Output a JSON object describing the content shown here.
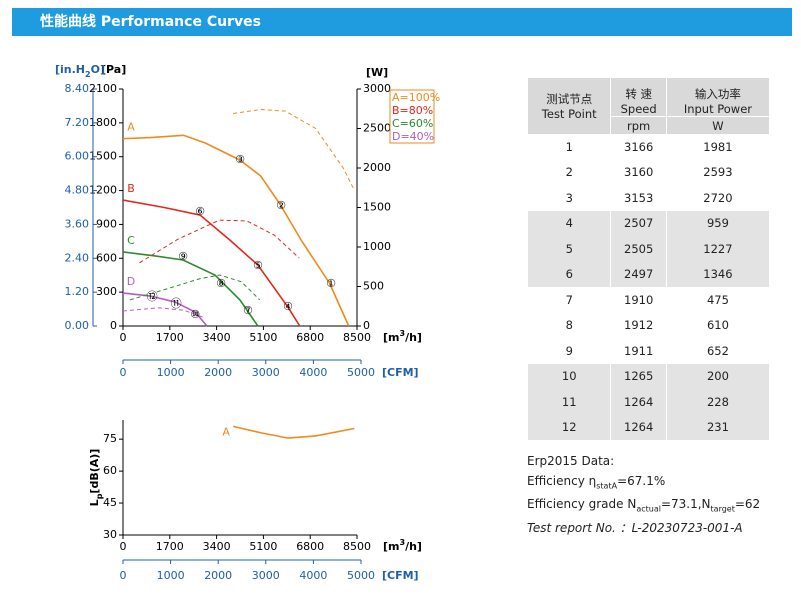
{
  "header": {
    "title": "性能曲线  Performance Curves"
  },
  "chart_data": [
    {
      "type": "line",
      "xlabel": {
        "pre": "[m",
        "sup": "3",
        "post": "/h]"
      },
      "x2label": "[CFM]",
      "ylabel": "[Pa]",
      "y3label": {
        "pre": "[in.H",
        "sub": "2",
        "post": "O]"
      },
      "y2label": "[W]",
      "xlim": [
        0,
        8500
      ],
      "xticks": [
        0,
        1700,
        3400,
        5100,
        6800,
        8500
      ],
      "x2lim": [
        0,
        5000
      ],
      "x2ticks": [
        0,
        1000,
        2000,
        3000,
        4000,
        5000
      ],
      "ylim": [
        0,
        2100
      ],
      "yticks": [
        0,
        300,
        600,
        900,
        1200,
        1500,
        1800,
        2100
      ],
      "y3lim": [
        0,
        8.4
      ],
      "y3ticks": [
        {
          "value": 0,
          "label": "0.00"
        },
        {
          "value": 1.2,
          "label": "1.20"
        },
        {
          "value": 2.4,
          "label": "2.40"
        },
        {
          "value": 3.6,
          "label": "3.60"
        },
        {
          "value": 4.8,
          "label": "4.80"
        },
        {
          "value": 6,
          "label": "6.00"
        },
        {
          "value": 7.2,
          "label": "7.20"
        },
        {
          "value": 8.4,
          "label": "8.40"
        }
      ],
      "y2lim": [
        0,
        3000
      ],
      "y2ticks": [
        0,
        500,
        1000,
        1500,
        2000,
        2500,
        3000
      ],
      "legend": "upper right",
      "series": [
        {
          "name": "A=100%",
          "label": "A",
          "color": "#f08a1c",
          "x": [
            0,
            1000,
            2200,
            3000,
            4250,
            5000,
            5700,
            6500,
            7500,
            8200
          ],
          "values": [
            1660,
            1670,
            1690,
            1620,
            1470,
            1330,
            1080,
            750,
            380,
            0
          ]
        },
        {
          "name": "B=80%",
          "label": "B",
          "color": "#e2271b",
          "x": [
            0,
            1500,
            2800,
            3880,
            4900,
            5990,
            6420
          ],
          "values": [
            1116,
            1050,
            983,
            762,
            540,
            168,
            0
          ]
        },
        {
          "name": "C=60%",
          "label": "C",
          "color": "#2e8b2e",
          "x": [
            0,
            1200,
            2180,
            3340,
            4250,
            4900
          ],
          "values": [
            656,
            620,
            585,
            452,
            230,
            0
          ]
        },
        {
          "name": "D=40%",
          "label": "D",
          "color": "#b05fc0",
          "x": [
            0,
            1000,
            1890,
            2620,
            3050
          ],
          "values": [
            292,
            265,
            213,
            124,
            0
          ]
        },
        {
          "color": "#f08a1c",
          "axis": "y2",
          "dash": true,
          "x": [
            4000,
            5000,
            5900,
            7000,
            8000,
            8400
          ],
          "values": [
            2690,
            2740,
            2720,
            2500,
            2000,
            1720
          ]
        },
        {
          "color": "#e2271b",
          "axis": "y2",
          "dash": true,
          "x": [
            600,
            2000,
            3500,
            4500,
            5500,
            6400
          ],
          "values": [
            800,
            1100,
            1340,
            1330,
            1150,
            860
          ]
        },
        {
          "color": "#2e8b2e",
          "axis": "y2",
          "dash": true,
          "x": [
            250,
            1500,
            2800,
            3520,
            4300,
            4970
          ],
          "values": [
            330,
            460,
            600,
            645,
            560,
            330
          ]
        },
        {
          "color": "#b05fc0",
          "axis": "y2",
          "dash": true,
          "x": [
            0,
            1300,
            2200,
            3000
          ],
          "values": [
            190,
            230,
            200,
            100
          ]
        }
      ],
      "points": [
        {
          "label": "①",
          "x": 7560,
          "y": 372
        },
        {
          "label": "②",
          "x": 5740,
          "y": 1063
        },
        {
          "label": "③",
          "x": 4250,
          "y": 1470
        },
        {
          "label": "④",
          "x": 5990,
          "y": 168
        },
        {
          "label": "⑤",
          "x": 4900,
          "y": 532
        },
        {
          "label": "⑥",
          "x": 2800,
          "y": 1010
        },
        {
          "label": "⑦",
          "x": 4540,
          "y": 133
        },
        {
          "label": "⑧",
          "x": 3560,
          "y": 372
        },
        {
          "label": "⑨",
          "x": 2180,
          "y": 611
        },
        {
          "label": "⑩",
          "x": 2620,
          "y": 97
        },
        {
          "label": "⑪",
          "x": 1930,
          "y": 195
        },
        {
          "label": "⑫",
          "x": 1060,
          "y": 257
        }
      ]
    },
    {
      "type": "line",
      "xlabel": {
        "pre": "[m",
        "sup": "3",
        "post": "/h]"
      },
      "x2label": "[CFM]",
      "ylabel": {
        "pre": "L",
        "sub": "p",
        "post": "[dB(A)]"
      },
      "xlim": [
        0,
        8500
      ],
      "xticks": [
        0,
        1700,
        3400,
        5100,
        6800,
        8500
      ],
      "x2lim": [
        0,
        5000
      ],
      "x2ticks": [
        0,
        1000,
        2000,
        3000,
        4000,
        5000
      ],
      "ylim": [
        30,
        84
      ],
      "yticks": [
        30,
        45,
        60,
        75
      ],
      "series": [
        {
          "label": "A",
          "color": "#f08a1c",
          "x": [
            4000,
            5000,
            6000,
            7000,
            8400
          ],
          "values": [
            81,
            78,
            75.5,
            76.5,
            80
          ]
        }
      ]
    }
  ],
  "table": {
    "columns": [
      {
        "lines": [
          "测试节点",
          "Test Point"
        ]
      },
      {
        "lines": [
          "转 速",
          "Speed"
        ],
        "unit": "rpm"
      },
      {
        "lines": [
          "输入功率",
          "Input Power"
        ],
        "unit": "W"
      }
    ],
    "rows": [
      [
        1,
        3166,
        1981
      ],
      [
        2,
        3160,
        2593
      ],
      [
        3,
        3153,
        2720
      ],
      [
        4,
        2507,
        959
      ],
      [
        5,
        2505,
        1227
      ],
      [
        6,
        2497,
        1346
      ],
      [
        7,
        1910,
        475
      ],
      [
        8,
        1912,
        610
      ],
      [
        9,
        1911,
        652
      ],
      [
        10,
        1265,
        200
      ],
      [
        11,
        1264,
        228
      ],
      [
        12,
        1264,
        231
      ]
    ]
  },
  "notes": {
    "erp": "Erp2015  Data:",
    "efficiency": {
      "pre": "Efficiency η",
      "sub": "statA",
      "post": "=67.1%"
    },
    "grade": {
      "pre": "Efficiency grade N",
      "sub1": "actual",
      "mid": "=73.1,N",
      "sub2": "target",
      "post": "=62"
    },
    "report": "Test report No. ：L-20230723-001-A"
  }
}
